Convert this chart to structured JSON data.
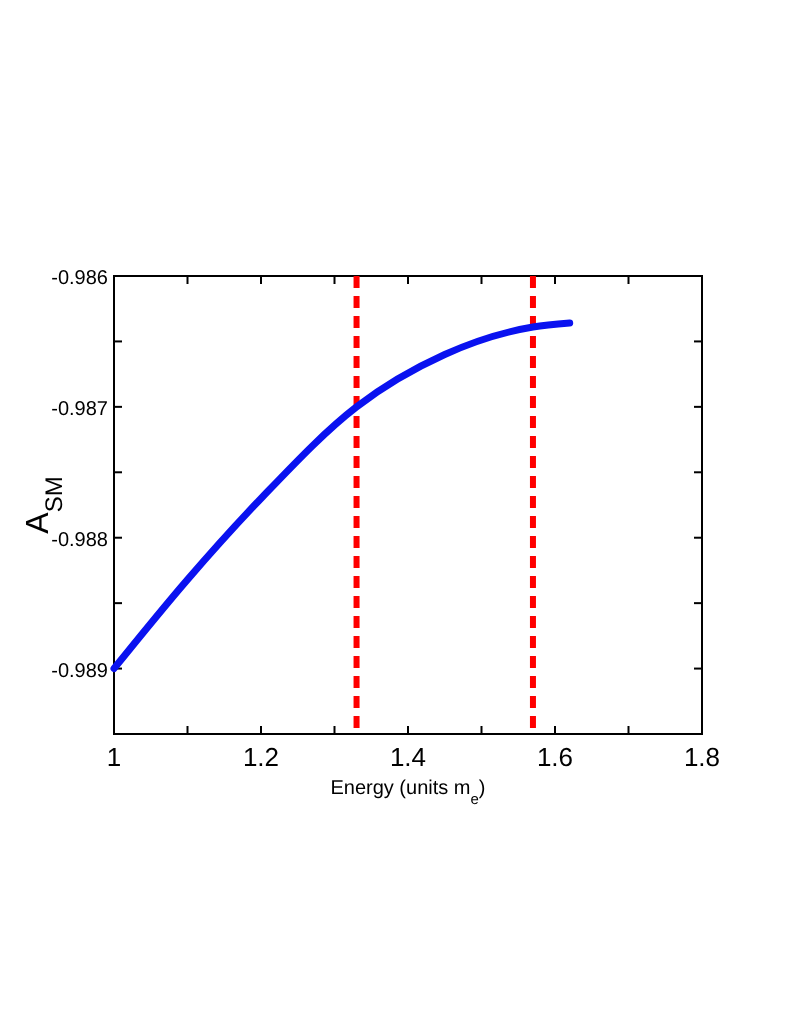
{
  "chart_data": {
    "type": "line",
    "xlabel": "Energy (units m$_{e}$)",
    "ylabel": "A$_{SM}$",
    "xlim": [
      1,
      1.8
    ],
    "xticks": [
      1,
      {
        "value": 1.1,
        "label": null
      },
      1.2,
      {
        "value": 1.3,
        "label": null
      },
      1.4,
      {
        "value": 1.5,
        "label": null
      },
      1.6,
      {
        "value": 1.7,
        "label": null
      },
      1.8
    ],
    "ylim": [
      -0.9895,
      -0.986
    ],
    "yticks": [
      {
        "value": -0.9895,
        "label": null
      },
      -0.989,
      {
        "value": -0.9885,
        "label": null
      },
      -0.988,
      {
        "value": -0.9875,
        "label": null
      },
      -0.987,
      {
        "value": -0.9865,
        "label": null
      },
      -0.986
    ],
    "grid": false,
    "series": [
      {
        "color": "#0a12f0",
        "x": [
          1,
          1.1,
          1.2,
          1.33,
          1.45,
          1.57,
          1.62
        ],
        "values": [
          -0.989,
          -0.98832,
          -0.9877,
          -0.987,
          -0.9866,
          -0.98639,
          -0.98636
        ]
      }
    ],
    "ref_lines": [
      {
        "axis": "x",
        "value": 1.33,
        "color": "#ff0000",
        "line_style": "dashed"
      },
      {
        "axis": "x",
        "value": 1.57,
        "color": "#ff0000",
        "line_style": "dashed"
      }
    ]
  }
}
